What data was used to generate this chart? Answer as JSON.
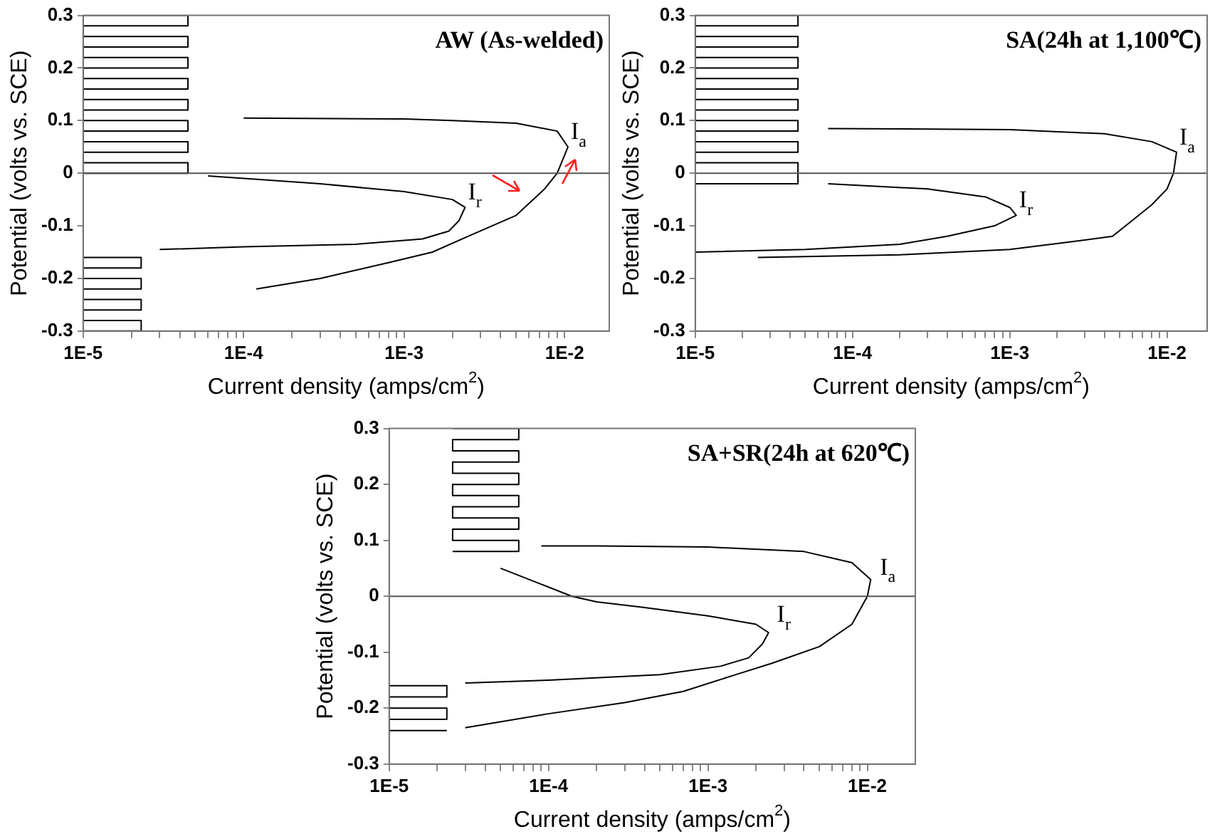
{
  "chart_data": [
    {
      "type": "line",
      "title": "AW (As-welded)",
      "xlabel": "Current density (amps/cm$^{2}$)",
      "ylabel": "Potential (volts vs. SCE)",
      "log": "x",
      "grid": false,
      "marker": "none",
      "line_style": "solid",
      "xlim": [
        1e-05,
        0.019
      ],
      "xticks": [
        {
          "value": 1e-05,
          "label": "1E-5"
        },
        {
          "value": 2e-05,
          "label": null
        },
        {
          "value": 3e-05,
          "label": null
        },
        {
          "value": 4e-05,
          "label": null
        },
        {
          "value": 5e-05,
          "label": null
        },
        {
          "value": 6e-05,
          "label": null
        },
        {
          "value": 7e-05,
          "label": null
        },
        {
          "value": 8e-05,
          "label": null
        },
        {
          "value": 9e-05,
          "label": null
        },
        {
          "value": 0.0001,
          "label": "1E-4"
        },
        {
          "value": 0.0002,
          "label": null
        },
        {
          "value": 0.0003,
          "label": null
        },
        {
          "value": 0.0004,
          "label": null
        },
        {
          "value": 0.0005,
          "label": null
        },
        {
          "value": 0.0006,
          "label": null
        },
        {
          "value": 0.0007,
          "label": null
        },
        {
          "value": 0.0008,
          "label": null
        },
        {
          "value": 0.0009,
          "label": null
        },
        {
          "value": 0.001,
          "label": "1E-3"
        },
        {
          "value": 0.002,
          "label": null
        },
        {
          "value": 0.003,
          "label": null
        },
        {
          "value": 0.004,
          "label": null
        },
        {
          "value": 0.005,
          "label": null
        },
        {
          "value": 0.006,
          "label": null
        },
        {
          "value": 0.007,
          "label": null
        },
        {
          "value": 0.008,
          "label": null
        },
        {
          "value": 0.009,
          "label": null
        },
        {
          "value": 0.01,
          "label": "1E-2"
        }
      ],
      "ylim": [
        -0.3,
        0.3
      ],
      "yticks": [
        -0.3,
        -0.2,
        -0.1,
        0,
        0.1,
        0.2,
        0.3
      ],
      "ref_lines": [
        {
          "axis": "y",
          "value": 0,
          "color": "#555555"
        }
      ],
      "annotations": [
        {
          "text": "I$_{a}$",
          "x": 0.0105,
          "y": 0.05
        },
        {
          "text": "I$_{r}$",
          "x": 0.0024,
          "y": -0.065
        }
      ],
      "series": [
        {
          "color": "#000000",
          "x": [
            0.00012,
            0.0003,
            0.0008,
            0.0015,
            0.0025,
            0.005,
            0.0075,
            0.009,
            0.0105,
            0.009,
            0.005,
            0.002,
            0.001,
            0.0001
          ],
          "values": [
            -0.22,
            -0.2,
            -0.17,
            -0.15,
            -0.12,
            -0.08,
            -0.03,
            0,
            0.05,
            0.08,
            0.095,
            0.1,
            0.103,
            0.105
          ]
        },
        {
          "color": "#000000",
          "x": [
            6e-05,
            0.0003,
            0.001,
            0.002,
            0.0024,
            0.0022,
            0.0019,
            0.0013,
            0.0005,
            0.0001,
            3e-05
          ],
          "values": [
            -0.005,
            -0.02,
            -0.035,
            -0.05,
            -0.065,
            -0.09,
            -0.11,
            -0.125,
            -0.135,
            -0.14,
            -0.145
          ]
        },
        {
          "color": "#000000",
          "x": [
            1e-05,
            4.5e-05,
            4.5e-05,
            1e-05,
            1e-05,
            4.5e-05,
            4.5e-05,
            1e-05,
            1e-05,
            4.5e-05,
            4.5e-05,
            1e-05,
            1e-05,
            4.5e-05,
            4.5e-05,
            1e-05,
            1e-05,
            4.5e-05,
            4.5e-05,
            1e-05,
            1e-05,
            4.5e-05,
            4.5e-05,
            1e-05,
            1e-05,
            4.5e-05,
            4.5e-05,
            1e-05,
            1e-05,
            4.5e-05,
            4.5e-05,
            1e-05
          ],
          "values": [
            0.3,
            0.3,
            0.28,
            0.28,
            0.26,
            0.26,
            0.24,
            0.24,
            0.22,
            0.22,
            0.2,
            0.2,
            0.18,
            0.18,
            0.16,
            0.16,
            0.14,
            0.14,
            0.12,
            0.12,
            0.1,
            0.1,
            0.08,
            0.08,
            0.06,
            0.06,
            0.04,
            0.04,
            0.02,
            0.02,
            0.0,
            0.0
          ]
        },
        {
          "color": "#000000",
          "x": [
            1e-05,
            2.3e-05,
            2.3e-05,
            1e-05,
            1e-05,
            2.3e-05,
            2.3e-05,
            1e-05,
            1e-05,
            2.3e-05,
            2.3e-05,
            1e-05,
            1e-05,
            2.3e-05,
            2.3e-05,
            1e-05
          ],
          "values": [
            -0.16,
            -0.16,
            -0.18,
            -0.18,
            -0.2,
            -0.2,
            -0.22,
            -0.22,
            -0.24,
            -0.24,
            -0.26,
            -0.26,
            -0.28,
            -0.28,
            -0.3,
            -0.3
          ]
        }
      ]
    },
    {
      "type": "line",
      "title": "SA(24h at 1,100℃)",
      "xlabel": "Current density (amps/cm$^{2}$)",
      "ylabel": "Potential (volts vs. SCE)",
      "log": "x",
      "grid": false,
      "marker": "none",
      "line_style": "solid",
      "xlim": [
        1e-05,
        0.018
      ],
      "xticks": [
        {
          "value": 1e-05,
          "label": "1E-5"
        },
        {
          "value": 2e-05,
          "label": null
        },
        {
          "value": 3e-05,
          "label": null
        },
        {
          "value": 4e-05,
          "label": null
        },
        {
          "value": 5e-05,
          "label": null
        },
        {
          "value": 6e-05,
          "label": null
        },
        {
          "value": 7e-05,
          "label": null
        },
        {
          "value": 8e-05,
          "label": null
        },
        {
          "value": 9e-05,
          "label": null
        },
        {
          "value": 0.0001,
          "label": "1E-4"
        },
        {
          "value": 0.0002,
          "label": null
        },
        {
          "value": 0.0003,
          "label": null
        },
        {
          "value": 0.0004,
          "label": null
        },
        {
          "value": 0.0005,
          "label": null
        },
        {
          "value": 0.0006,
          "label": null
        },
        {
          "value": 0.0007,
          "label": null
        },
        {
          "value": 0.0008,
          "label": null
        },
        {
          "value": 0.0009,
          "label": null
        },
        {
          "value": 0.001,
          "label": "1E-3"
        },
        {
          "value": 0.002,
          "label": null
        },
        {
          "value": 0.003,
          "label": null
        },
        {
          "value": 0.004,
          "label": null
        },
        {
          "value": 0.005,
          "label": null
        },
        {
          "value": 0.006,
          "label": null
        },
        {
          "value": 0.007,
          "label": null
        },
        {
          "value": 0.008,
          "label": null
        },
        {
          "value": 0.009,
          "label": null
        },
        {
          "value": 0.01,
          "label": "1E-2"
        }
      ],
      "ylim": [
        -0.3,
        0.3
      ],
      "yticks": [
        -0.3,
        -0.2,
        -0.1,
        0,
        0.1,
        0.2,
        0.3
      ],
      "ref_lines": [
        {
          "axis": "y",
          "value": 0,
          "color": "#555555"
        }
      ],
      "annotations": [
        {
          "text": "I$_{a}$",
          "x": 0.0115,
          "y": 0.04
        },
        {
          "text": "I$_{r}$",
          "x": 0.0011,
          "y": -0.08
        }
      ],
      "series": [
        {
          "color": "#000000",
          "x": [
            2.5e-05,
            0.0002,
            0.001,
            0.0025,
            0.0045,
            0.006,
            0.008,
            0.01,
            0.011,
            0.0115,
            0.008,
            0.004,
            0.001,
            7e-05
          ],
          "values": [
            -0.16,
            -0.155,
            -0.145,
            -0.13,
            -0.12,
            -0.09,
            -0.06,
            -0.03,
            0,
            0.04,
            0.06,
            0.075,
            0.083,
            0.085
          ]
        },
        {
          "color": "#000000",
          "x": [
            7e-05,
            0.0003,
            0.0007,
            0.001,
            0.0011,
            0.0008,
            0.0004,
            0.0002,
            5e-05,
            1e-05
          ],
          "values": [
            -0.02,
            -0.03,
            -0.045,
            -0.065,
            -0.08,
            -0.1,
            -0.12,
            -0.135,
            -0.145,
            -0.15
          ]
        },
        {
          "color": "#000000",
          "x": [
            1e-05,
            4.5e-05,
            4.5e-05,
            1e-05,
            1e-05,
            4.5e-05,
            4.5e-05,
            1e-05,
            1e-05,
            4.5e-05,
            4.5e-05,
            1e-05,
            1e-05,
            4.5e-05,
            4.5e-05,
            1e-05,
            1e-05,
            4.5e-05,
            4.5e-05,
            1e-05,
            1e-05,
            4.5e-05,
            4.5e-05,
            1e-05,
            1e-05,
            4.5e-05,
            4.5e-05,
            1e-05,
            1e-05,
            4.5e-05,
            4.5e-05,
            1e-05
          ],
          "values": [
            0.3,
            0.3,
            0.28,
            0.28,
            0.26,
            0.26,
            0.24,
            0.24,
            0.22,
            0.22,
            0.2,
            0.2,
            0.18,
            0.18,
            0.16,
            0.16,
            0.14,
            0.14,
            0.12,
            0.12,
            0.1,
            0.1,
            0.08,
            0.08,
            0.06,
            0.06,
            0.04,
            0.04,
            0.02,
            0.02,
            -0.02,
            -0.02
          ]
        }
      ]
    },
    {
      "type": "line",
      "title": "SA+SR(24h at 620℃)",
      "xlabel": "Current density (amps/cm$^{2}$)",
      "ylabel": "Potential (volts vs. SCE)",
      "log": "x",
      "grid": false,
      "marker": "none",
      "line_style": "solid",
      "xlim": [
        1e-05,
        0.02
      ],
      "xticks": [
        {
          "value": 1e-05,
          "label": "1E-5"
        },
        {
          "value": 2e-05,
          "label": null
        },
        {
          "value": 3e-05,
          "label": null
        },
        {
          "value": 4e-05,
          "label": null
        },
        {
          "value": 5e-05,
          "label": null
        },
        {
          "value": 6e-05,
          "label": null
        },
        {
          "value": 7e-05,
          "label": null
        },
        {
          "value": 8e-05,
          "label": null
        },
        {
          "value": 9e-05,
          "label": null
        },
        {
          "value": 0.0001,
          "label": "1E-4"
        },
        {
          "value": 0.0002,
          "label": null
        },
        {
          "value": 0.0003,
          "label": null
        },
        {
          "value": 0.0004,
          "label": null
        },
        {
          "value": 0.0005,
          "label": null
        },
        {
          "value": 0.0006,
          "label": null
        },
        {
          "value": 0.0007,
          "label": null
        },
        {
          "value": 0.0008,
          "label": null
        },
        {
          "value": 0.0009,
          "label": null
        },
        {
          "value": 0.001,
          "label": "1E-3"
        },
        {
          "value": 0.002,
          "label": null
        },
        {
          "value": 0.003,
          "label": null
        },
        {
          "value": 0.004,
          "label": null
        },
        {
          "value": 0.005,
          "label": null
        },
        {
          "value": 0.006,
          "label": null
        },
        {
          "value": 0.007,
          "label": null
        },
        {
          "value": 0.008,
          "label": null
        },
        {
          "value": 0.009,
          "label": null
        },
        {
          "value": 0.01,
          "label": "1E-2"
        }
      ],
      "ylim": [
        -0.3,
        0.3
      ],
      "yticks": [
        -0.3,
        -0.2,
        -0.1,
        0,
        0.1,
        0.2,
        0.3
      ],
      "ref_lines": [
        {
          "axis": "y",
          "value": 0,
          "color": "#555555"
        }
      ],
      "annotations": [
        {
          "text": "I$_{a}$",
          "x": 0.0115,
          "y": 0.025
        },
        {
          "text": "I$_{r}$",
          "x": 0.0026,
          "y": -0.06
        }
      ],
      "series": [
        {
          "color": "#000000",
          "x": [
            3e-05,
            0.0001,
            0.0003,
            0.0007,
            0.0015,
            0.0025,
            0.005,
            0.008,
            0.01,
            0.0105,
            0.008,
            0.004,
            0.001,
            0.0002,
            9e-05
          ],
          "values": [
            -0.235,
            -0.21,
            -0.19,
            -0.17,
            -0.14,
            -0.12,
            -0.09,
            -0.05,
            0,
            0.03,
            0.06,
            0.08,
            0.088,
            0.09,
            0.09
          ]
        },
        {
          "color": "#000000",
          "x": [
            5e-05,
            0.00014,
            0.0002,
            0.0004,
            0.001,
            0.002,
            0.0024,
            0.0022,
            0.0018,
            0.0012,
            0.0005,
            0.0001,
            3e-05
          ],
          "values": [
            0.05,
            0,
            -0.01,
            -0.02,
            -0.035,
            -0.05,
            -0.065,
            -0.085,
            -0.11,
            -0.125,
            -0.14,
            -0.15,
            -0.155
          ]
        },
        {
          "color": "#000000",
          "x": [
            2.5e-05,
            6.5e-05,
            6.5e-05,
            2.5e-05,
            2.5e-05,
            6.5e-05,
            6.5e-05,
            2.5e-05,
            2.5e-05,
            6.5e-05,
            6.5e-05,
            2.5e-05,
            2.5e-05,
            6.5e-05,
            6.5e-05,
            2.5e-05,
            2.5e-05,
            6.5e-05,
            6.5e-05,
            2.5e-05,
            2.5e-05,
            6.5e-05,
            6.5e-05,
            2.5e-05
          ],
          "values": [
            0.3,
            0.3,
            0.28,
            0.28,
            0.26,
            0.26,
            0.24,
            0.24,
            0.22,
            0.22,
            0.2,
            0.2,
            0.18,
            0.18,
            0.16,
            0.16,
            0.14,
            0.14,
            0.12,
            0.12,
            0.1,
            0.1,
            0.08,
            0.08
          ]
        },
        {
          "color": "#000000",
          "x": [
            1e-05,
            2.3e-05,
            2.3e-05,
            1e-05,
            1e-05,
            2.3e-05,
            2.3e-05,
            1e-05,
            1e-05,
            2.3e-05
          ],
          "values": [
            -0.16,
            -0.16,
            -0.18,
            -0.18,
            -0.2,
            -0.2,
            -0.22,
            -0.22,
            -0.24,
            -0.24
          ]
        }
      ]
    }
  ]
}
